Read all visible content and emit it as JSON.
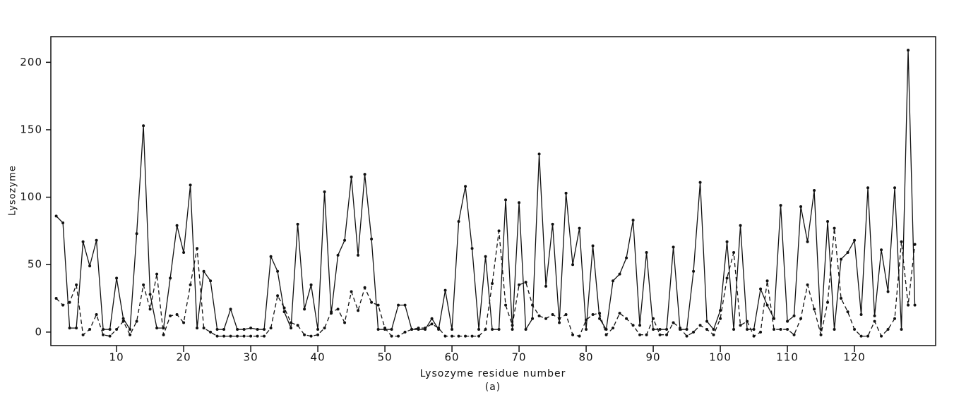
{
  "chart_data": {
    "type": "line",
    "y_label": "Lysozyme",
    "x_label": "Lysozyme residue number",
    "annotation": "(a)",
    "x": [
      1,
      2,
      3,
      4,
      5,
      6,
      7,
      8,
      9,
      10,
      11,
      12,
      13,
      14,
      15,
      16,
      17,
      18,
      19,
      20,
      21,
      22,
      23,
      24,
      25,
      26,
      27,
      28,
      29,
      30,
      31,
      32,
      33,
      34,
      35,
      36,
      37,
      38,
      39,
      40,
      41,
      42,
      43,
      44,
      45,
      46,
      47,
      48,
      49,
      50,
      51,
      52,
      53,
      54,
      55,
      56,
      57,
      58,
      59,
      60,
      61,
      62,
      63,
      64,
      65,
      66,
      67,
      68,
      69,
      70,
      71,
      72,
      73,
      74,
      75,
      76,
      77,
      78,
      79,
      80,
      81,
      82,
      83,
      84,
      85,
      86,
      87,
      88,
      89,
      90,
      91,
      92,
      93,
      94,
      95,
      96,
      97,
      98,
      99,
      100,
      101,
      102,
      103,
      104,
      105,
      106,
      107,
      108,
      109,
      110,
      111,
      112,
      113,
      114,
      115,
      116,
      117,
      118,
      119,
      120,
      121,
      122,
      123,
      124,
      125,
      126,
      127,
      128,
      129
    ],
    "series": [
      {
        "color": "#111111",
        "style": "solid",
        "values": [
          86,
          81,
          3,
          3,
          67,
          49,
          68,
          2,
          2,
          40,
          10,
          2,
          73,
          153,
          28,
          3,
          3,
          40,
          79,
          59,
          109,
          3,
          45,
          38,
          2,
          2,
          17,
          2,
          2,
          3,
          2,
          2,
          56,
          45,
          15,
          3,
          80,
          17,
          35,
          2,
          104,
          14,
          57,
          68,
          115,
          57,
          117,
          69,
          2,
          2,
          2,
          20,
          20,
          2,
          2,
          2,
          10,
          2,
          31,
          2,
          82,
          108,
          62,
          2,
          56,
          2,
          2,
          98,
          2,
          96,
          2,
          10,
          132,
          34,
          80,
          7,
          103,
          50,
          77,
          2,
          64,
          10,
          2,
          38,
          43,
          55,
          83,
          5,
          59,
          2,
          2,
          2,
          63,
          2,
          2,
          45,
          111,
          8,
          2,
          16,
          67,
          2,
          79,
          2,
          2,
          32,
          20,
          10,
          94,
          8,
          12,
          93,
          67,
          105,
          2,
          82,
          2,
          54,
          59,
          68,
          13,
          107,
          12,
          61,
          30,
          107,
          2,
          209,
          20
        ]
      },
      {
        "color": "#111111",
        "style": "dashed",
        "values": [
          25,
          20,
          22,
          35,
          -2,
          2,
          13,
          -2,
          -3,
          2,
          8,
          -2,
          8,
          35,
          17,
          43,
          -2,
          12,
          13,
          7,
          35,
          62,
          3,
          0,
          -3,
          -3,
          -3,
          -3,
          -3,
          -3,
          -3,
          -3,
          3,
          27,
          18,
          7,
          5,
          -2,
          -3,
          -2,
          3,
          15,
          17,
          7,
          30,
          16,
          33,
          22,
          20,
          3,
          -3,
          -3,
          0,
          2,
          3,
          3,
          6,
          3,
          -3,
          -3,
          -3,
          -3,
          -3,
          -3,
          2,
          36,
          75,
          20,
          5,
          35,
          37,
          20,
          12,
          10,
          13,
          10,
          13,
          -2,
          -3,
          9,
          13,
          14,
          -2,
          3,
          14,
          10,
          5,
          -2,
          -2,
          10,
          -2,
          -2,
          7,
          3,
          -3,
          0,
          5,
          2,
          -2,
          10,
          40,
          59,
          5,
          8,
          -3,
          0,
          38,
          2,
          2,
          2,
          -2,
          10,
          35,
          17,
          -2,
          22,
          77,
          25,
          15,
          2,
          -3,
          -3,
          8,
          -3,
          2,
          10,
          67,
          20,
          65
        ]
      }
    ],
    "xlim": [
      0.2,
      132.1
    ],
    "ylim": [
      -10,
      219
    ],
    "xticks": [
      10,
      20,
      30,
      40,
      50,
      60,
      70,
      80,
      90,
      100,
      110,
      120
    ],
    "yticks": [
      0,
      50,
      100,
      150,
      200
    ]
  }
}
